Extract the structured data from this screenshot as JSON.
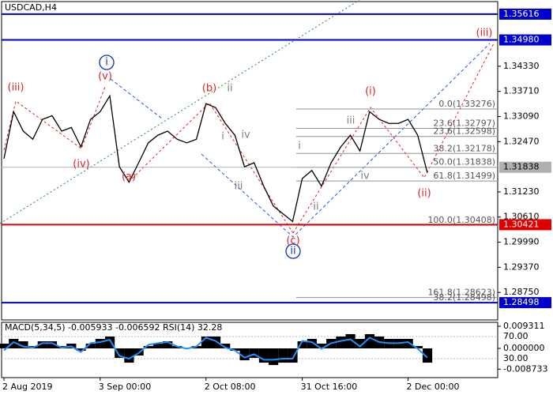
{
  "chart_data": {
    "type": "line",
    "title": "USDCAD,H4",
    "categories": [
      "2 Aug 2019",
      null,
      null,
      null,
      null,
      null,
      null,
      null,
      null,
      null,
      "3 Sep 00:00",
      null,
      null,
      null,
      null,
      null,
      null,
      null,
      null,
      null,
      null,
      "2 Oct 08:00",
      null,
      null,
      null,
      null,
      null,
      null,
      null,
      null,
      null,
      "31 Oct 16:00",
      null,
      null,
      null,
      null,
      null,
      null,
      null,
      null,
      null,
      null,
      "2 Dec 00:00",
      null,
      null
    ],
    "values": [
      1.3205,
      1.3321,
      1.3273,
      1.3253,
      1.3302,
      1.3311,
      1.3273,
      1.3282,
      1.3234,
      1.3302,
      1.3321,
      1.336,
      1.3185,
      1.3147,
      1.3195,
      1.3244,
      1.3263,
      1.3273,
      1.3253,
      1.3244,
      1.3253,
      1.3341,
      1.3331,
      1.3292,
      1.3263,
      1.3185,
      1.3195,
      1.3137,
      1.3088,
      1.3069,
      1.305,
      1.3156,
      1.3176,
      1.3137,
      1.3195,
      1.3234,
      1.3263,
      1.3224,
      1.3321,
      1.3302,
      1.3292,
      1.3292,
      1.3302,
      1.3263,
      1.317
    ],
    "color": "#000000",
    "ylim": [
      1.28071,
      1.35926
    ],
    "yticks": [
      {
        "value": 1.3433,
        "label": "1.34330"
      },
      {
        "value": 1.3371,
        "label": "1.33710"
      },
      {
        "value": 1.3309,
        "label": "1.33090"
      },
      {
        "value": 1.3247,
        "label": "1.32470"
      },
      {
        "value": 1.3123,
        "label": "1.31230"
      },
      {
        "value": 1.3061,
        "label": "1.30610"
      },
      {
        "value": 1.2999,
        "label": "1.29990"
      },
      {
        "value": 1.2937,
        "label": "1.29370"
      },
      {
        "value": 1.2875,
        "label": "1.28750"
      }
    ],
    "levels": [
      {
        "value": 1.35616,
        "color": "#0000cc"
      },
      {
        "value": 1.3498,
        "label": "1.34980",
        "color": "#0000cc"
      },
      {
        "value": 1.30421,
        "color": "#dd0000"
      },
      {
        "value": 1.28498,
        "color": "#0000cc"
      },
      {
        "value": 1.31838,
        "color": "#b0b0b0"
      }
    ],
    "fib_levels": [
      {
        "value": 1.33276,
        "label": "0.0(1.33276)"
      },
      {
        "value": 1.32797,
        "label": "23.6(1.32797)"
      },
      {
        "value": 1.32598,
        "label": "23.6(1.32598)"
      },
      {
        "value": 1.32178,
        "label": "38.2(1.32178)"
      },
      {
        "value": 1.31838,
        "label": "50.0(1.31838)"
      },
      {
        "value": 1.31499,
        "label": "61.8(1.31499)"
      },
      {
        "value": 1.30408,
        "label": "100.0(1.30408)"
      },
      {
        "value": 1.28623,
        "label": "161.8(1.28623)"
      },
      {
        "value": 1.28498,
        "label": "38.2(1.28498)"
      }
    ],
    "wave_labels": [
      "(iii)",
      "(iv)",
      "(v)",
      "i",
      "(a)",
      "(b)",
      "ii",
      "i",
      "iv",
      "iii",
      "(c)",
      "ii",
      "i",
      "ii",
      "iii",
      "iv",
      "(i)",
      "(ii)",
      "(iii)"
    ],
    "macd": {
      "title": "MACD(5,34,5) -0.005933 -0.006592 RSI(14) 32.28",
      "values": [
        0.002,
        0.004,
        0.003,
        0.001,
        0.003,
        0.003,
        0.001,
        0.002,
        -0.001,
        0.002,
        0.004,
        0.005,
        -0.004,
        -0.006,
        -0.003,
        0.001,
        0.002,
        0.003,
        0.001,
        0.0,
        0.001,
        0.005,
        0.005,
        0.002,
        -0.001,
        -0.005,
        -0.004,
        -0.006,
        -0.007,
        -0.006,
        -0.006,
        0.003,
        0.004,
        0.002,
        0.004,
        0.005,
        0.006,
        0.004,
        0.006,
        0.005,
        0.004,
        0.004,
        0.004,
        0.001,
        -0.006
      ],
      "ylim": [
        -0.0123,
        0.01097
      ],
      "yticks": [
        0.009311,
        {
          "value": 0,
          "label": "0.000000"
        },
        -0.008733
      ],
      "rsi": [
        45,
        60,
        52,
        50,
        58,
        58,
        50,
        52,
        42,
        58,
        60,
        64,
        35,
        30,
        40,
        55,
        58,
        60,
        52,
        48,
        52,
        68,
        62,
        50,
        45,
        32,
        38,
        28,
        28,
        30,
        30,
        62,
        60,
        48,
        58,
        62,
        65,
        52,
        68,
        60,
        58,
        58,
        60,
        48,
        32
      ],
      "rsi_color": "#1e90ff",
      "rsi_ylim": [
        -4.3,
        95.7
      ],
      "rsi_ticks": [
        {
          "value": 70,
          "label": "70.00"
        },
        {
          "value": 30,
          "label": "30.00"
        }
      ]
    }
  }
}
